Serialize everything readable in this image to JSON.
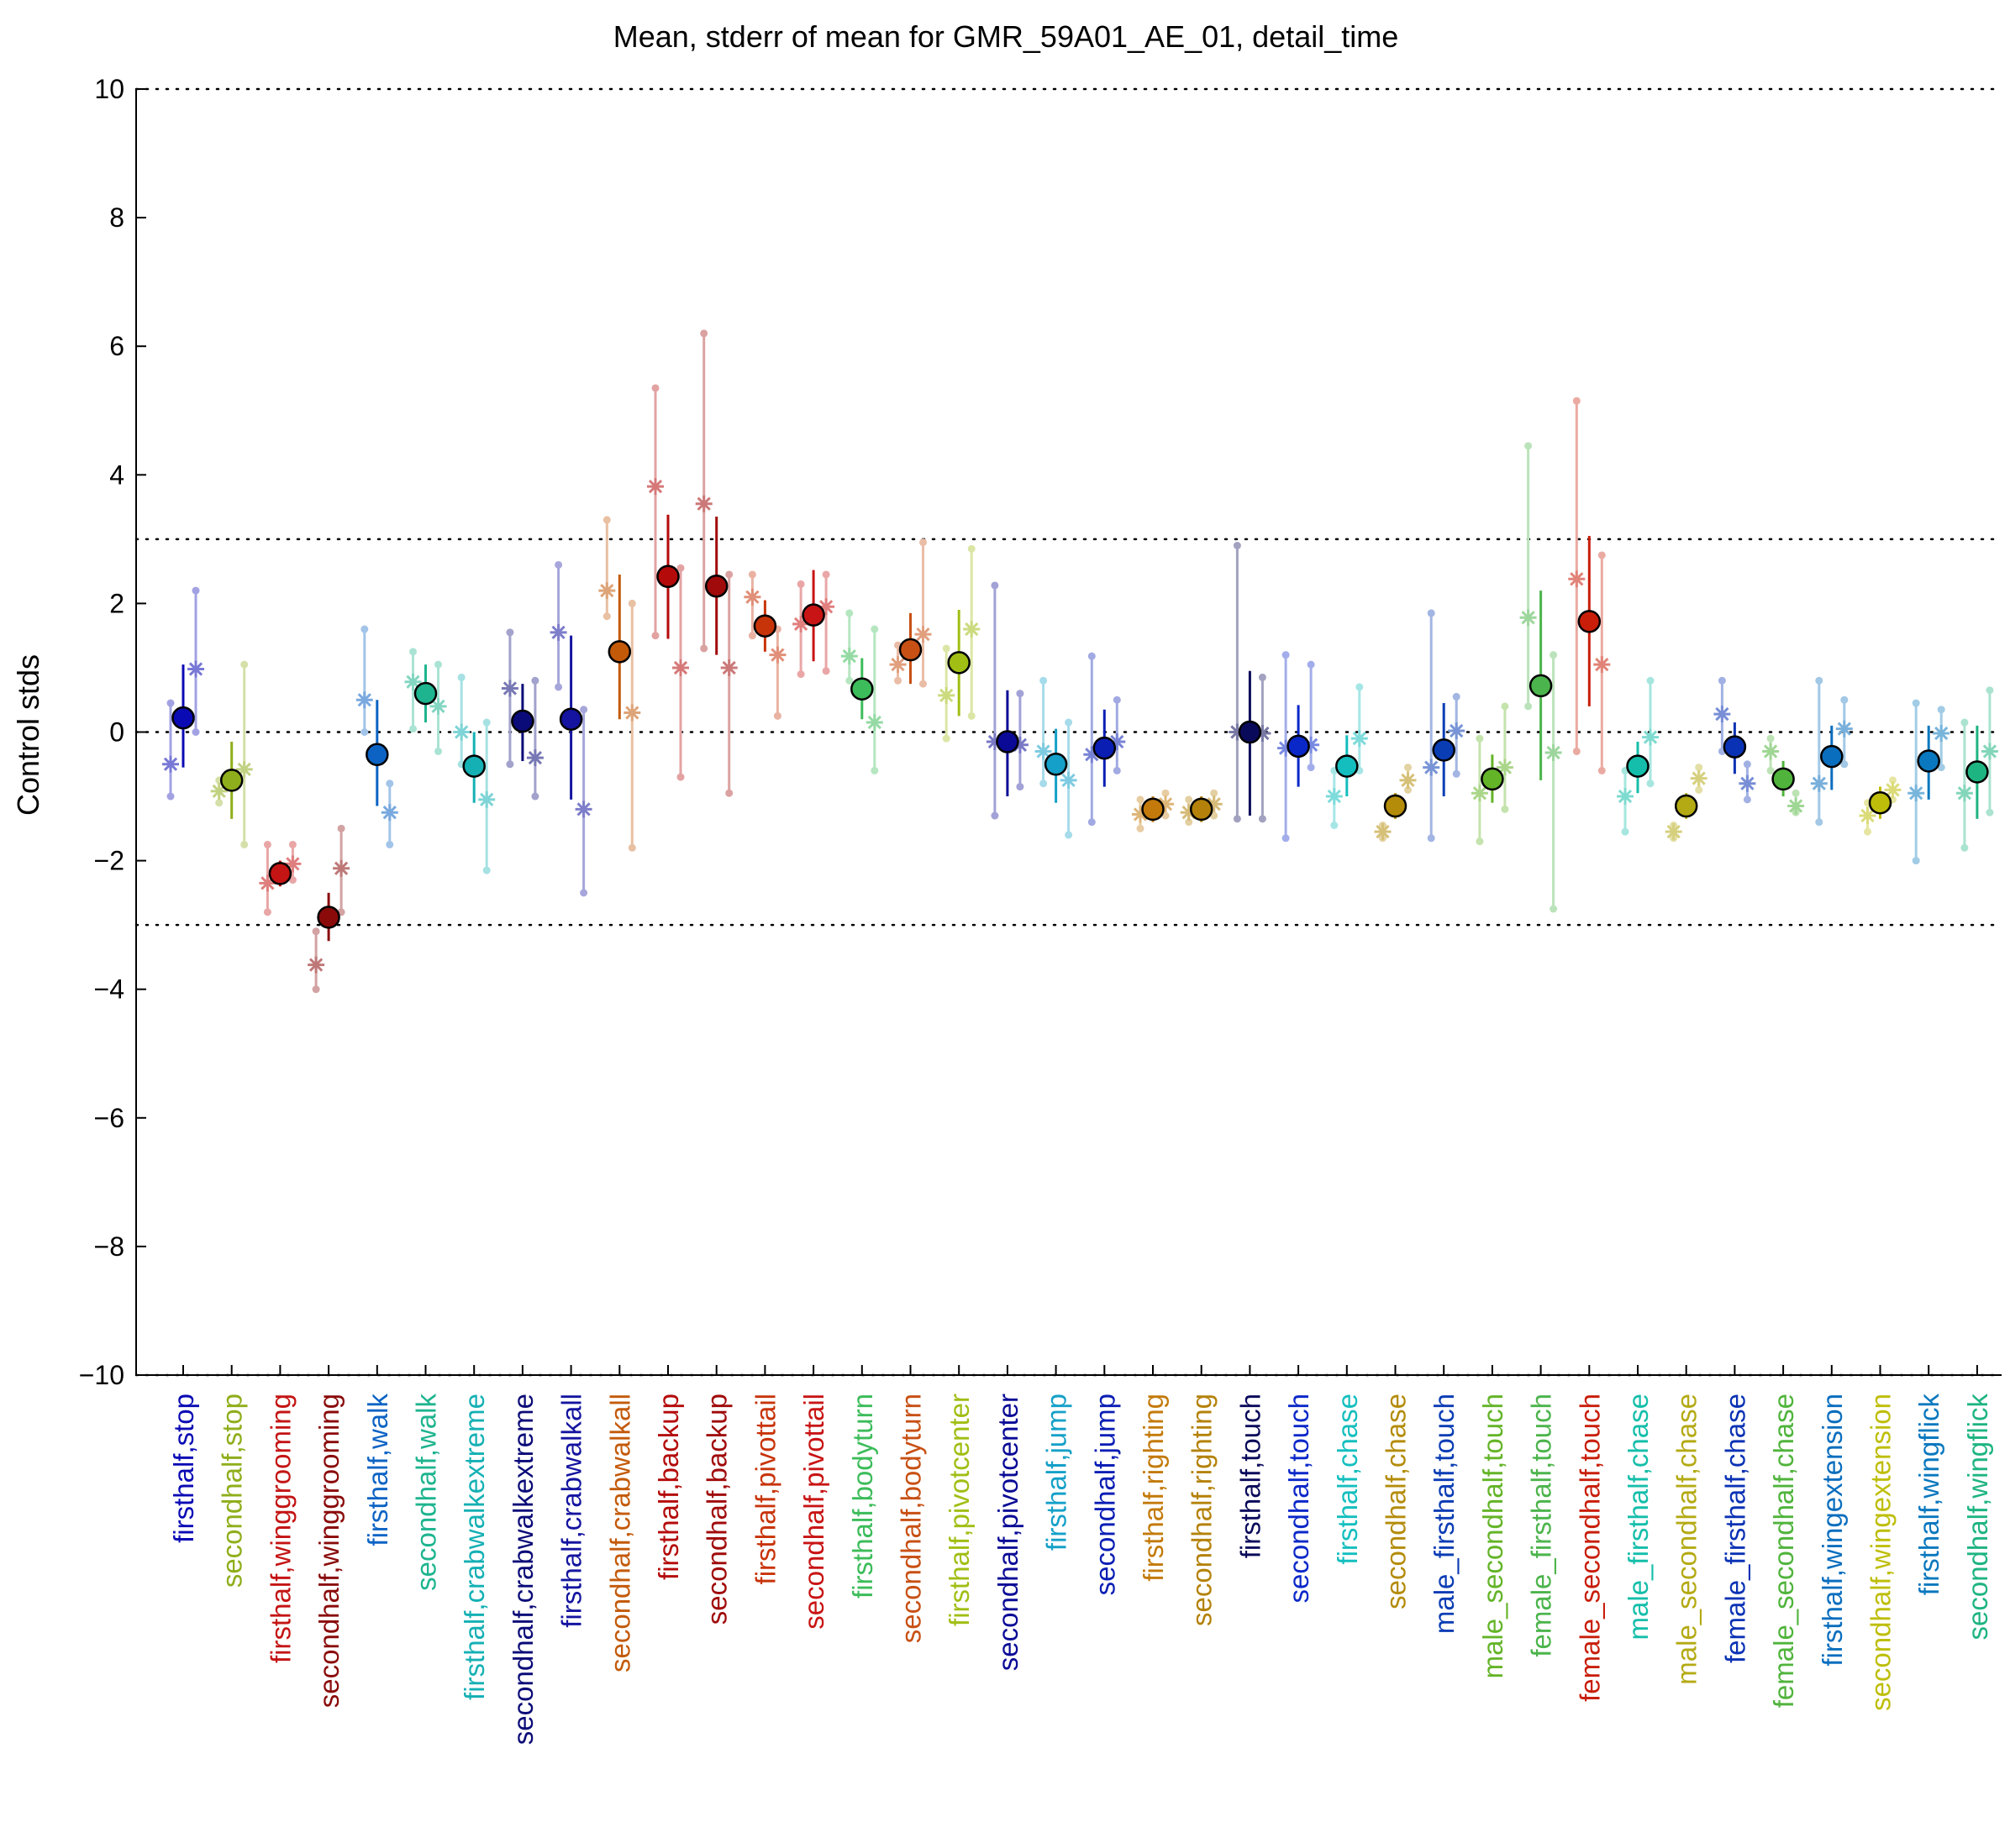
{
  "chart_data": {
    "type": "scatter",
    "title": "Mean, stderr of mean for GMR_59A01_AE_01, detail_time",
    "xlabel": "",
    "ylabel": "Control stds",
    "ylim": [
      -10,
      10
    ],
    "yticks": [
      10,
      8,
      6,
      4,
      2,
      0,
      -2,
      -4,
      -6,
      -8,
      -10
    ],
    "ytick_labels": [
      "10",
      "8",
      "6",
      "4",
      "2",
      "0",
      "−2",
      "−4",
      "−6",
      "−8",
      "−10"
    ],
    "reference_lines": [
      10,
      3,
      0,
      -3,
      -10
    ],
    "grid": false,
    "categories": [
      "firsthalf,stop",
      "secondhalf,stop",
      "firsthalf,winggrooming",
      "secondhalf,winggrooming",
      "firsthalf,walk",
      "secondhalf,walk",
      "firsthalf,crabwalkextreme",
      "secondhalf,crabwalkextreme",
      "firsthalf,crabwalkall",
      "secondhalf,crabwalkall",
      "firsthalf,backup",
      "secondhalf,backup",
      "firsthalf,pivottail",
      "secondhalf,pivottail",
      "firsthalf,bodyturn",
      "secondhalf,bodyturn",
      "firsthalf,pivotcenter",
      "secondhalf,pivotcenter",
      "firsthalf,jump",
      "secondhalf,jump",
      "firsthalf,righting",
      "secondhalf,righting",
      "firsthalf,touch",
      "secondhalf,touch",
      "firsthalf,chase",
      "secondhalf,chase",
      "male_firsthalf,touch",
      "male_secondhalf,touch",
      "female_firsthalf,touch",
      "female_secondhalf,touch",
      "male_firsthalf,chase",
      "male_secondhalf,chase",
      "female_firsthalf,chase",
      "female_secondhalf,chase",
      "firsthalf,wingextension",
      "secondhalf,wingextension",
      "firsthalf,wingflick",
      "secondhalf,wingflick"
    ],
    "colors": [
      "#0a0ab4",
      "#8fae1b",
      "#c41414",
      "#8a0a0a",
      "#0c63c4",
      "#1eb48f",
      "#14b0b4",
      "#0a0a78",
      "#1414a0",
      "#c35a0a",
      "#b40a0a",
      "#a00a0a",
      "#c8340a",
      "#c81414",
      "#3cbc5a",
      "#c85014",
      "#a0be14",
      "#0a0a96",
      "#14a0c8",
      "#0a1eb4",
      "#c37a0a",
      "#b4820a",
      "#0a0a5a",
      "#0a28c8",
      "#14bebe",
      "#b48c0a",
      "#0a3cb4",
      "#64b428",
      "#4cb44c",
      "#c81e0a",
      "#14beaa",
      "#b4aa14",
      "#0a32b4",
      "#50b43c",
      "#0a6ebe",
      "#bebe0a",
      "#0a78be",
      "#1eb482"
    ],
    "series": [
      {
        "name": "mean",
        "values": [
          0.22,
          -0.75,
          -2.2,
          -2.88,
          -0.35,
          0.6,
          -0.53,
          0.17,
          0.2,
          1.25,
          2.42,
          2.27,
          1.65,
          1.82,
          0.67,
          1.28,
          1.08,
          -0.15,
          -0.5,
          -0.25,
          -1.2,
          -1.2,
          0.0,
          -0.22,
          -0.53,
          -1.15,
          -0.28,
          -0.73,
          0.72,
          1.72,
          -0.53,
          -1.15,
          -0.23,
          -0.73,
          -0.38,
          -1.1,
          -0.45,
          -0.62
        ],
        "error_low": [
          -0.55,
          -1.35,
          -2.4,
          -3.25,
          -1.15,
          0.15,
          -1.1,
          -0.45,
          -1.05,
          0.2,
          1.45,
          1.2,
          1.25,
          1.1,
          0.2,
          0.75,
          0.25,
          -1.0,
          -1.1,
          -0.85,
          -1.4,
          -1.4,
          -1.3,
          -0.85,
          -1.0,
          -1.35,
          -1.0,
          -1.1,
          -0.75,
          0.4,
          -0.95,
          -1.35,
          -0.65,
          -1.0,
          -0.9,
          -1.35,
          -1.05,
          -1.35
        ],
        "error_high": [
          1.05,
          -0.15,
          -2.0,
          -2.5,
          0.5,
          1.05,
          0.0,
          0.75,
          1.5,
          2.45,
          3.38,
          3.35,
          2.05,
          2.52,
          1.15,
          1.85,
          1.9,
          0.65,
          0.05,
          0.35,
          -1.0,
          -1.0,
          0.95,
          0.42,
          -0.05,
          -0.95,
          0.45,
          -0.35,
          2.2,
          3.05,
          -0.15,
          -0.95,
          0.15,
          -0.45,
          0.1,
          -0.85,
          0.1,
          0.1
        ]
      },
      {
        "name": "left",
        "values": [
          -0.5,
          -0.92,
          -2.35,
          -3.62,
          0.5,
          0.78,
          0.0,
          0.68,
          1.55,
          2.2,
          3.82,
          3.55,
          2.1,
          1.68,
          1.18,
          1.05,
          0.57,
          -0.15,
          -0.3,
          -0.35,
          -1.28,
          -1.25,
          0.0,
          -0.25,
          -1.0,
          -1.55,
          -0.55,
          -0.95,
          1.78,
          2.38,
          -1.0,
          -1.55,
          0.28,
          -0.3,
          -0.8,
          -1.3,
          -0.95,
          -0.95
        ],
        "error_low": [
          -1.0,
          -1.1,
          -2.8,
          -4.0,
          0.0,
          0.05,
          -0.5,
          -0.5,
          0.7,
          1.8,
          1.5,
          1.3,
          1.5,
          0.9,
          0.8,
          0.8,
          -0.1,
          -1.3,
          -0.8,
          -1.4,
          -1.5,
          -1.4,
          -1.35,
          -1.65,
          -1.45,
          -1.65,
          -1.65,
          -1.7,
          0.4,
          -0.3,
          -1.55,
          -1.65,
          -0.3,
          -0.6,
          -1.4,
          -1.55,
          -2.0,
          -1.8
        ],
        "error_high": [
          0.45,
          -0.75,
          -1.75,
          -3.1,
          1.6,
          1.25,
          0.85,
          1.55,
          2.6,
          3.3,
          5.35,
          6.2,
          2.45,
          2.3,
          1.85,
          1.35,
          1.3,
          2.28,
          0.8,
          1.18,
          -1.05,
          -1.05,
          2.9,
          1.2,
          -0.6,
          -1.45,
          1.85,
          -0.1,
          4.45,
          5.15,
          -0.6,
          -1.45,
          0.8,
          -0.1,
          0.8,
          -1.1,
          0.45,
          0.15
        ]
      },
      {
        "name": "right",
        "values": [
          0.98,
          -0.58,
          -2.05,
          -2.12,
          -1.25,
          0.4,
          -1.05,
          -0.4,
          -1.2,
          0.3,
          1.0,
          1.0,
          1.2,
          1.95,
          0.15,
          1.52,
          1.6,
          -0.2,
          -0.75,
          -0.15,
          -1.12,
          -1.12,
          -0.02,
          -0.2,
          -0.1,
          -0.75,
          0.02,
          -0.55,
          -0.32,
          1.05,
          -0.08,
          -0.72,
          -0.8,
          -1.15,
          0.05,
          -0.9,
          -0.02,
          -0.3
        ],
        "error_low": [
          0.0,
          -1.75,
          -2.3,
          -2.8,
          -1.75,
          -0.3,
          -2.15,
          -1.0,
          -2.5,
          -1.8,
          -0.7,
          -0.95,
          0.25,
          0.95,
          -0.6,
          0.75,
          0.25,
          -0.85,
          -1.6,
          -0.6,
          -1.3,
          -1.3,
          -1.35,
          -0.55,
          -0.6,
          -0.9,
          -0.65,
          -1.2,
          -2.75,
          -0.6,
          -0.8,
          -0.9,
          -1.05,
          -1.25,
          -0.5,
          -1.05,
          -0.55,
          -1.25
        ],
        "error_high": [
          2.2,
          1.05,
          -1.75,
          -1.5,
          -0.8,
          1.05,
          0.15,
          0.8,
          0.35,
          2.0,
          2.55,
          2.45,
          1.6,
          2.45,
          1.6,
          2.95,
          2.85,
          0.6,
          0.15,
          0.5,
          -0.95,
          -0.95,
          0.85,
          1.05,
          0.7,
          -0.55,
          0.55,
          0.4,
          1.2,
          2.75,
          0.8,
          -0.55,
          -0.5,
          -0.95,
          0.5,
          -0.75,
          0.35,
          0.65
        ]
      }
    ]
  }
}
